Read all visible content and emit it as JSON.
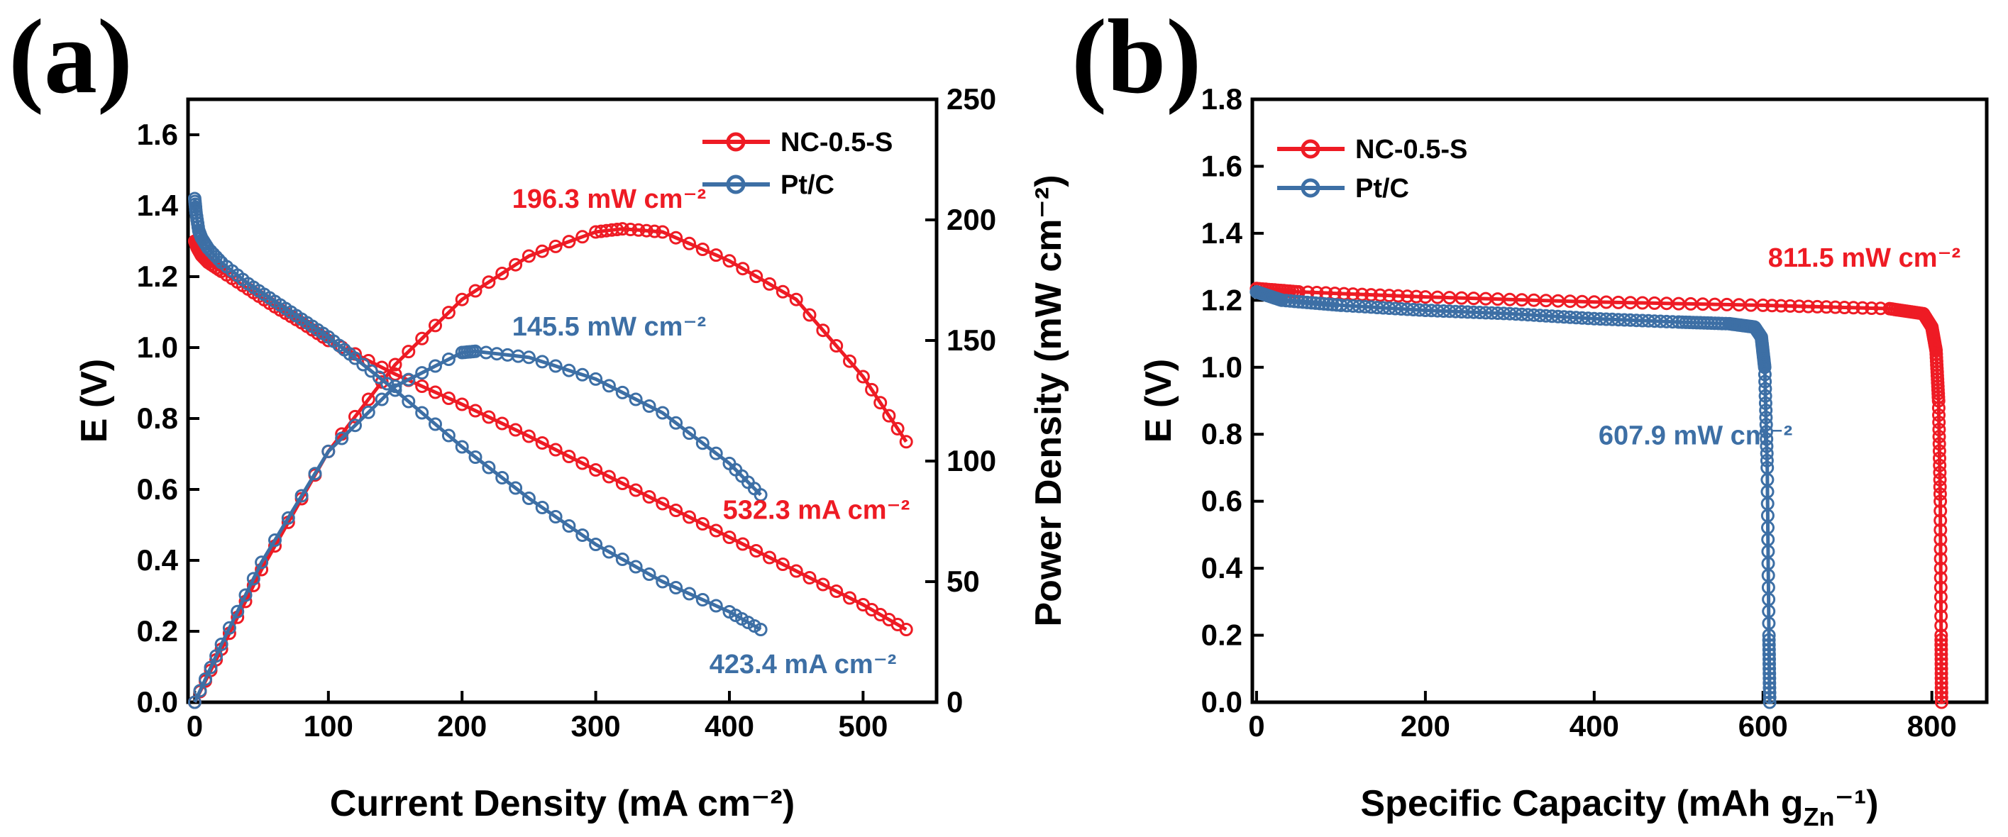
{
  "figure": {
    "panel_a_label": "(a)",
    "panel_b_label": "(b)"
  },
  "colors": {
    "red": "#ee1b24",
    "blue": "#3d6fa5"
  },
  "chart_data": [
    {
      "id": "a",
      "type": "line",
      "title": "",
      "xlabel": "Current Density (mA cm⁻²)",
      "ylabel": "E (V)",
      "y2label": "Power Density (mW cm⁻²)",
      "xlim": [
        -5,
        555
      ],
      "ylim": [
        0,
        1.7
      ],
      "y2lim": [
        0,
        250
      ],
      "xticks": [
        0,
        100,
        200,
        300,
        400,
        500
      ],
      "yticks": [
        0.0,
        0.2,
        0.4,
        0.6,
        0.8,
        1.0,
        1.2,
        1.4,
        1.6
      ],
      "y2ticks": [
        0,
        50,
        100,
        150,
        200,
        250
      ],
      "xtick_labels": [
        "0",
        "100",
        "200",
        "300",
        "400",
        "500"
      ],
      "ytick_labels": [
        "0.0",
        "0.2",
        "0.4",
        "0.6",
        "0.8",
        "1.0",
        "1.2",
        "1.4",
        "1.6"
      ],
      "y2tick_labels": [
        "0",
        "50",
        "100",
        "150",
        "200",
        "250"
      ],
      "legend_position": "top-right",
      "legend": [
        "NC-0.5-S",
        "Pt/C"
      ],
      "series": [
        {
          "name": "NC-0.5-S",
          "kind": "polarization",
          "axis": "left",
          "color": "#ee1b24",
          "x": [
            0,
            2,
            5,
            10,
            20,
            40,
            60,
            80,
            100,
            150,
            200,
            250,
            300,
            350,
            400,
            450,
            500,
            532.3
          ],
          "y": [
            1.3,
            1.28,
            1.26,
            1.24,
            1.215,
            1.165,
            1.115,
            1.07,
            1.02,
            0.925,
            0.84,
            0.75,
            0.655,
            0.56,
            0.465,
            0.37,
            0.275,
            0.205
          ]
        },
        {
          "name": "NC-0.5-S",
          "kind": "power",
          "axis": "right",
          "color": "#ee1b24",
          "x": [
            0,
            20,
            50,
            100,
            150,
            200,
            250,
            300,
            320,
            350,
            400,
            450,
            500,
            532.3
          ],
          "y": [
            0,
            22,
            55,
            104,
            140,
            167,
            185,
            195,
            196.3,
            195,
            183,
            167,
            135,
            108
          ]
        },
        {
          "name": "Pt/C",
          "kind": "polarization",
          "axis": "left",
          "color": "#3d6fa5",
          "x": [
            0,
            1,
            3,
            5,
            10,
            20,
            40,
            60,
            80,
            100,
            120,
            150,
            200,
            250,
            300,
            350,
            400,
            423.4
          ],
          "y": [
            1.42,
            1.38,
            1.33,
            1.31,
            1.28,
            1.24,
            1.18,
            1.13,
            1.08,
            1.03,
            0.97,
            0.88,
            0.72,
            0.575,
            0.445,
            0.34,
            0.255,
            0.205
          ]
        },
        {
          "name": "Pt/C",
          "kind": "power",
          "axis": "right",
          "color": "#3d6fa5",
          "x": [
            0,
            20,
            50,
            100,
            150,
            200,
            210,
            250,
            300,
            350,
            400,
            423.4
          ],
          "y": [
            0,
            24,
            58,
            104,
            131,
            145,
            145.5,
            143,
            134,
            120,
            99,
            86
          ]
        }
      ],
      "annotations": [
        {
          "text": "196.3 mW cm⁻²",
          "color": "#ee1b24",
          "x": 310,
          "y2": 205
        },
        {
          "text": "145.5 mW cm⁻²",
          "color": "#3d6fa5",
          "x": 310,
          "y2": 152
        },
        {
          "text": "532.3 mA cm⁻²",
          "color": "#ee1b24",
          "x": 465,
          "y2": 76
        },
        {
          "text": "423.4 mA cm⁻²",
          "color": "#3d6fa5",
          "x": 455,
          "y2": 12
        }
      ]
    },
    {
      "id": "b",
      "type": "line",
      "title": "",
      "xlabel": "Specific Capacity (mAh g",
      "xlabel_sub": "Zn",
      "xlabel_end": "⁻¹)",
      "ylabel": "E (V)",
      "xlim": [
        -5,
        865
      ],
      "ylim": [
        0,
        1.8
      ],
      "xticks": [
        0,
        200,
        400,
        600,
        800
      ],
      "yticks": [
        0.0,
        0.2,
        0.4,
        0.6,
        0.8,
        1.0,
        1.2,
        1.4,
        1.6,
        1.8
      ],
      "xtick_labels": [
        "0",
        "200",
        "400",
        "600",
        "800"
      ],
      "ytick_labels": [
        "0.0",
        "0.2",
        "0.4",
        "0.6",
        "0.8",
        "1.0",
        "1.2",
        "1.4",
        "1.6",
        "1.8"
      ],
      "legend_position": "top-left",
      "legend": [
        "NC-0.5-S",
        "Pt/C"
      ],
      "series": [
        {
          "name": "NC-0.5-S",
          "color": "#ee1b24",
          "x": [
            0,
            50,
            200,
            400,
            600,
            750,
            790,
            800,
            805,
            808,
            810,
            811,
            811.5
          ],
          "y": [
            1.235,
            1.225,
            1.21,
            1.195,
            1.185,
            1.175,
            1.16,
            1.12,
            1.05,
            0.9,
            0.6,
            0.2,
            0.0
          ]
        },
        {
          "name": "Pt/C",
          "color": "#3d6fa5",
          "x": [
            0,
            30,
            100,
            200,
            300,
            400,
            500,
            560,
            590,
            598,
            602,
            605,
            607,
            607.9
          ],
          "y": [
            1.225,
            1.2,
            1.185,
            1.17,
            1.16,
            1.145,
            1.135,
            1.13,
            1.12,
            1.09,
            1.0,
            0.7,
            0.2,
            0.0
          ]
        }
      ],
      "annotations": [
        {
          "text": "811.5 mW cm⁻²",
          "color": "#ee1b24",
          "x": 720,
          "y": 1.3
        },
        {
          "text": "607.9 mW cm⁻²",
          "color": "#3d6fa5",
          "x": 520,
          "y": 0.77
        }
      ]
    }
  ]
}
